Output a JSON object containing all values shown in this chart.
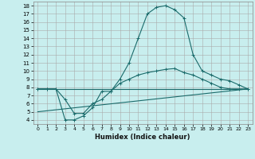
{
  "xlabel": "Humidex (Indice chaleur)",
  "xlim": [
    -0.5,
    23.5
  ],
  "ylim": [
    3.5,
    18.5
  ],
  "yticks": [
    4,
    5,
    6,
    7,
    8,
    9,
    10,
    11,
    12,
    13,
    14,
    15,
    16,
    17,
    18
  ],
  "xticks": [
    0,
    1,
    2,
    3,
    4,
    5,
    6,
    7,
    8,
    9,
    10,
    11,
    12,
    13,
    14,
    15,
    16,
    17,
    18,
    19,
    20,
    21,
    22,
    23
  ],
  "bg_color": "#c8eeee",
  "grid_color": "#aaaaaa",
  "line_color": "#1a6b6b",
  "line1_x": [
    0,
    1,
    2,
    3,
    4,
    5,
    6,
    7,
    8,
    9,
    10,
    11,
    12,
    13,
    14,
    15,
    16,
    17,
    18,
    19,
    20,
    21,
    22,
    23
  ],
  "line1_y": [
    7.8,
    7.8,
    7.8,
    4.0,
    4.0,
    4.5,
    5.5,
    7.5,
    7.5,
    9.0,
    11.0,
    14.0,
    17.0,
    17.8,
    18.0,
    17.5,
    16.5,
    12.0,
    10.0,
    9.5,
    9.0,
    8.8,
    8.3,
    7.8
  ],
  "line2_x": [
    0,
    1,
    2,
    3,
    4,
    5,
    6,
    7,
    8,
    9,
    10,
    11,
    12,
    13,
    14,
    15,
    16,
    17,
    18,
    19,
    20,
    21,
    22,
    23
  ],
  "line2_y": [
    7.8,
    7.8,
    7.8,
    6.5,
    4.8,
    4.8,
    6.0,
    6.5,
    7.5,
    8.5,
    9.0,
    9.5,
    9.8,
    10.0,
    10.2,
    10.3,
    9.8,
    9.5,
    9.0,
    8.5,
    8.0,
    7.8,
    7.8,
    7.8
  ],
  "line3_x": [
    0,
    23
  ],
  "line3_y": [
    7.8,
    7.8
  ],
  "line4_x": [
    0,
    23
  ],
  "line4_y": [
    5.0,
    7.8
  ],
  "xlabel_fontsize": 6,
  "tick_fontsize_x": 4.5,
  "tick_fontsize_y": 5
}
